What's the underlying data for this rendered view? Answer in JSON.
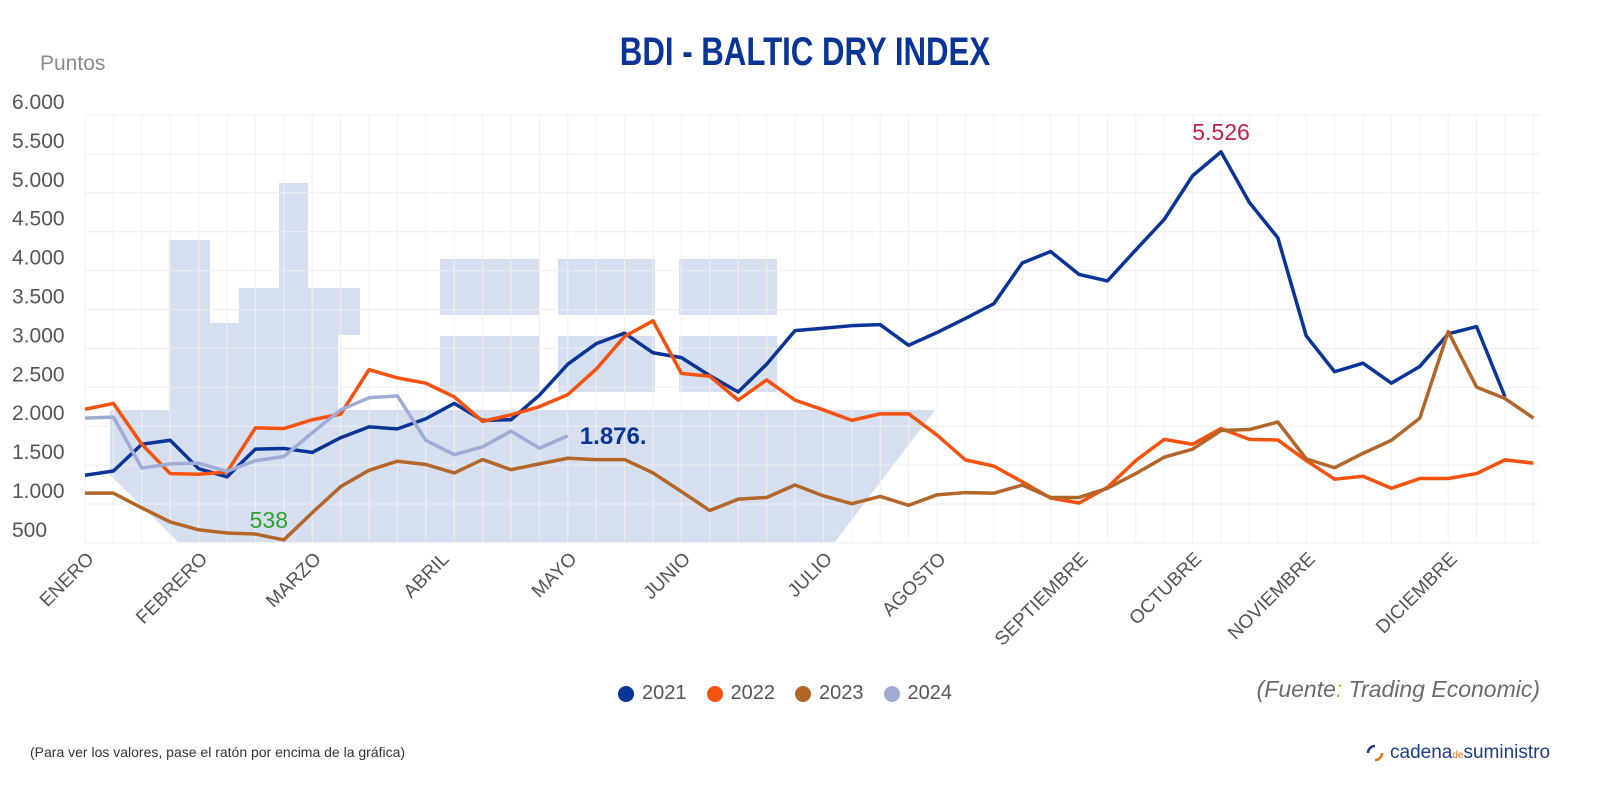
{
  "chart_data": {
    "type": "line",
    "title": "BDI - BALTIC DRY INDEX",
    "ylabel": "Puntos",
    "ylim": [
      500,
      6000
    ],
    "yticks": [
      "6.000",
      "5.500",
      "5.000",
      "4.500",
      "4.000",
      "3.500",
      "3.000",
      "2.500",
      "2.000",
      "1.500",
      "1.000",
      "500"
    ],
    "ytick_values": [
      6000,
      5500,
      5000,
      4500,
      4000,
      3500,
      3000,
      2500,
      2000,
      1500,
      1000,
      500
    ],
    "x_unit": "week",
    "month_labels": [
      "ENERO",
      "FEBRERO",
      "MARZO",
      "ABRIL",
      "MAYO",
      "JUNIO",
      "JULIO",
      "AGOSTO",
      "SEPTIEMBRE",
      "OCTUBRE",
      "NOVIEMBRE",
      "DICIEMBRE"
    ],
    "month_week": [
      1,
      5,
      9,
      13.5,
      18,
      22,
      27,
      31,
      36,
      40,
      44,
      49
    ],
    "grid": true,
    "legend_position": "bottom",
    "series": [
      {
        "name": "2021",
        "color": "#0a3597",
        "values": [
          1370,
          1424,
          1768,
          1819,
          1454,
          1349,
          1705,
          1714,
          1663,
          1852,
          1991,
          1966,
          2096,
          2293,
          2075,
          2083,
          2398,
          2797,
          3061,
          3196,
          2944,
          2881,
          2650,
          2440,
          2797,
          3229,
          3259,
          3292,
          3305,
          3040,
          3204,
          3385,
          3574,
          4098,
          4245,
          3951,
          3867,
          4266,
          4657,
          5219,
          5526,
          4875,
          4422,
          3162,
          2700,
          2810,
          2553,
          2768,
          3187,
          3280,
          2377
        ]
      },
      {
        "name": "2022",
        "color": "#f5520f",
        "values": [
          2218,
          2293,
          1768,
          1391,
          1382,
          1412,
          1978,
          1970,
          2083,
          2155,
          2726,
          2621,
          2553,
          2377,
          2062,
          2146,
          2251,
          2406,
          2734,
          3154,
          3355,
          2679,
          2642,
          2335,
          2595,
          2335,
          2209,
          2075,
          2159,
          2159,
          1886,
          1567,
          1487,
          1286,
          1076,
          1013,
          1214,
          1558,
          1831,
          1768,
          1970,
          1831,
          1823,
          1558,
          1319,
          1357,
          1202,
          1328,
          1328,
          1391,
          1567,
          1525
        ]
      },
      {
        "name": "2023",
        "color": "#b3662a",
        "values": [
          1139,
          1139,
          950,
          769,
          669,
          627,
          614,
          538,
          887,
          1223,
          1433,
          1550,
          1508,
          1399,
          1571,
          1441,
          1516,
          1588,
          1571,
          1571,
          1399,
          1160,
          916,
          1063,
          1084,
          1244,
          1105,
          1004,
          1097,
          983,
          1118,
          1147,
          1139,
          1244,
          1084,
          1084,
          1202,
          1391,
          1601,
          1705,
          1945,
          1957,
          2054,
          1580,
          1466,
          1651,
          1819,
          2104,
          3217,
          2503,
          2356,
          2104
        ]
      },
      {
        "name": "2024",
        "color": "#a0abd6",
        "values": [
          2104,
          2117,
          1462,
          1516,
          1525,
          1420,
          1558,
          1609,
          1915,
          2209,
          2365,
          2390,
          1819,
          1634,
          1735,
          1936,
          1718,
          1876
        ]
      }
    ],
    "annotations": [
      {
        "text": "5.526",
        "series": "2021",
        "week": 41,
        "color": "#c0204a"
      },
      {
        "text": "538",
        "series": "2023",
        "week": 8,
        "color": "#2ca02c"
      },
      {
        "text": "1.876.",
        "series": "2024",
        "week": 18,
        "color": "#0a3597"
      }
    ],
    "background_image": "cargo-ship-silhouette",
    "background_color": "#d6dff0"
  },
  "source": {
    "prefix": "(Fuente",
    "colon": ":",
    "text": " Trading Economic)"
  },
  "note": "(Para ver los valores, pase el ratón por encima de la gráfica)",
  "logo": {
    "a": "cadena",
    "b": "de",
    "c": "suministro"
  }
}
